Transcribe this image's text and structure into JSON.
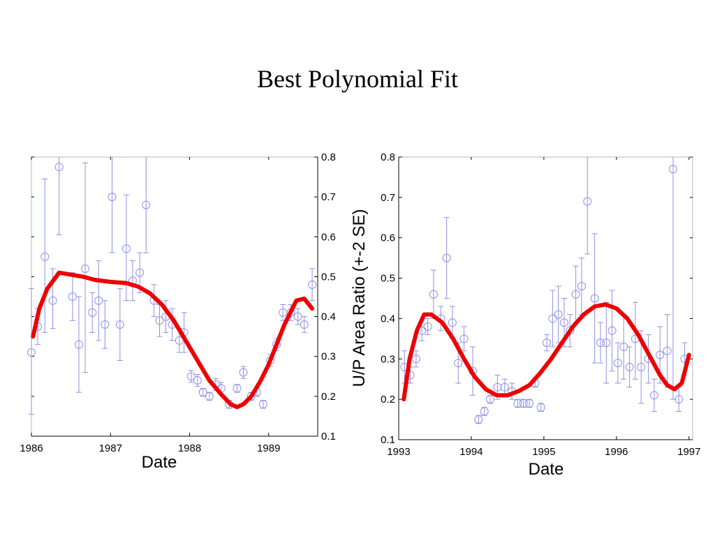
{
  "slide": {
    "title": "Best Polynomial Fit"
  },
  "colors": {
    "fit": "#ee0000",
    "observed": "#8f8fe8",
    "axis": "#000000",
    "frame": "#b4b4b4"
  },
  "chart_data": [
    {
      "type": "scatter",
      "xlabel": "Date",
      "ylabel": "",
      "xlim": [
        1986,
        1989.62
      ],
      "ylim": [
        0.1,
        0.8
      ],
      "y_axis_side": "right",
      "x_ticks": [
        1986,
        1987,
        1988,
        1989
      ],
      "x_tick_labels": [
        "1986",
        "1987",
        "1988",
        "1989"
      ],
      "y_ticks": [
        0.1,
        0.2,
        0.3,
        0.4,
        0.5,
        0.6,
        0.7,
        0.8
      ],
      "y_tick_labels": [
        "0.1",
        "0.2",
        "0.3",
        "0.4",
        "0.5",
        "0.6",
        "0.7",
        "0.8"
      ],
      "series": [
        {
          "style": "markers-with-error-bars",
          "points": [
            [
              1986.0,
              0.31,
              0.155,
              0.47
            ],
            [
              1986.08,
              0.375,
              0.33,
              0.42
            ],
            [
              1986.17,
              0.55,
              0.36,
              0.745
            ],
            [
              1986.27,
              0.44,
              0.37,
              0.52
            ],
            [
              1986.35,
              0.775,
              0.605,
              0.8
            ],
            [
              1986.52,
              0.45,
              0.39,
              0.51
            ],
            [
              1986.6,
              0.33,
              0.21,
              0.45
            ],
            [
              1986.68,
              0.52,
              0.26,
              0.785
            ],
            [
              1986.77,
              0.41,
              0.36,
              0.46
            ],
            [
              1986.85,
              0.44,
              0.34,
              0.54
            ],
            [
              1986.93,
              0.38,
              0.32,
              0.44
            ],
            [
              1987.02,
              0.7,
              0.56,
              0.8
            ],
            [
              1987.12,
              0.38,
              0.29,
              0.47
            ],
            [
              1987.2,
              0.57,
              0.44,
              0.705
            ],
            [
              1987.28,
              0.49,
              0.44,
              0.54
            ],
            [
              1987.37,
              0.51,
              0.46,
              0.56
            ],
            [
              1987.45,
              0.68,
              0.56,
              0.8
            ],
            [
              1987.55,
              0.44,
              0.4,
              0.48
            ],
            [
              1987.62,
              0.39,
              0.35,
              0.43
            ],
            [
              1987.7,
              0.4,
              0.36,
              0.44
            ],
            [
              1987.78,
              0.38,
              0.34,
              0.42
            ],
            [
              1987.87,
              0.34,
              0.31,
              0.37
            ],
            [
              1987.93,
              0.36,
              0.31,
              0.41
            ],
            [
              1988.02,
              0.25,
              0.235,
              0.265
            ],
            [
              1988.1,
              0.24,
              0.225,
              0.255
            ],
            [
              1988.17,
              0.21,
              0.2,
              0.22
            ],
            [
              1988.25,
              0.2,
              0.19,
              0.21
            ],
            [
              1988.33,
              0.23,
              0.215,
              0.245
            ],
            [
              1988.4,
              0.22,
              0.205,
              0.235
            ],
            [
              1988.5,
              0.18,
              0.17,
              0.19
            ],
            [
              1988.6,
              0.22,
              0.21,
              0.23
            ],
            [
              1988.68,
              0.26,
              0.245,
              0.275
            ],
            [
              1988.78,
              0.2,
              0.19,
              0.21
            ],
            [
              1988.85,
              0.21,
              0.2,
              0.22
            ],
            [
              1988.93,
              0.18,
              0.17,
              0.19
            ],
            [
              1989.02,
              0.29,
              0.275,
              0.305
            ],
            [
              1989.1,
              0.33,
              0.315,
              0.345
            ],
            [
              1989.18,
              0.41,
              0.39,
              0.43
            ],
            [
              1989.28,
              0.41,
              0.39,
              0.43
            ],
            [
              1989.37,
              0.4,
              0.38,
              0.42
            ],
            [
              1989.45,
              0.38,
              0.36,
              0.4
            ],
            [
              1989.55,
              0.48,
              0.44,
              0.52
            ]
          ]
        },
        {
          "style": "fit-line",
          "x": [
            1986.02,
            1986.1,
            1986.2,
            1986.35,
            1986.5,
            1986.65,
            1986.8,
            1987.0,
            1987.2,
            1987.35,
            1987.5,
            1987.65,
            1987.8,
            1987.95,
            1988.1,
            1988.25,
            1988.4,
            1988.52,
            1988.6,
            1988.68,
            1988.78,
            1988.9,
            1989.0,
            1989.1,
            1989.2,
            1989.35,
            1989.45,
            1989.55
          ],
          "y": [
            0.35,
            0.42,
            0.47,
            0.51,
            0.505,
            0.5,
            0.492,
            0.487,
            0.484,
            0.475,
            0.458,
            0.43,
            0.39,
            0.34,
            0.29,
            0.24,
            0.205,
            0.18,
            0.173,
            0.18,
            0.2,
            0.24,
            0.28,
            0.33,
            0.38,
            0.44,
            0.445,
            0.42
          ]
        }
      ]
    },
    {
      "type": "scatter",
      "xlabel": "Date",
      "ylabel": "U/P Area Ratio (+-2 SE)",
      "xlim": [
        1993,
        1997.05
      ],
      "ylim": [
        0.1,
        0.8
      ],
      "y_axis_side": "left",
      "x_ticks": [
        1993,
        1994,
        1995,
        1996,
        1997
      ],
      "x_tick_labels": [
        "1993",
        "1994",
        "1995",
        "1996",
        "1997"
      ],
      "y_ticks": [
        0.1,
        0.2,
        0.3,
        0.4,
        0.5,
        0.6,
        0.7,
        0.8
      ],
      "y_tick_labels": [
        "0.1",
        "0.2",
        "0.3",
        "0.4",
        "0.5",
        "0.6",
        "0.7",
        "0.8"
      ],
      "series": [
        {
          "style": "markers-with-error-bars",
          "points": [
            [
              1993.08,
              0.28,
              0.24,
              0.32
            ],
            [
              1993.16,
              0.26,
              0.24,
              0.28
            ],
            [
              1993.24,
              0.3,
              0.28,
              0.32
            ],
            [
              1993.32,
              0.37,
              0.345,
              0.395
            ],
            [
              1993.4,
              0.38,
              0.36,
              0.4
            ],
            [
              1993.48,
              0.46,
              0.4,
              0.52
            ],
            [
              1993.58,
              0.4,
              0.37,
              0.43
            ],
            [
              1993.66,
              0.55,
              0.45,
              0.65
            ],
            [
              1993.74,
              0.39,
              0.35,
              0.43
            ],
            [
              1993.82,
              0.29,
              0.24,
              0.34
            ],
            [
              1993.9,
              0.35,
              0.32,
              0.38
            ],
            [
              1994.02,
              0.27,
              0.21,
              0.33
            ],
            [
              1994.1,
              0.15,
              0.14,
              0.16
            ],
            [
              1994.18,
              0.17,
              0.16,
              0.18
            ],
            [
              1994.26,
              0.2,
              0.19,
              0.21
            ],
            [
              1994.36,
              0.23,
              0.2,
              0.26
            ],
            [
              1994.46,
              0.23,
              0.21,
              0.25
            ],
            [
              1994.56,
              0.22,
              0.2,
              0.24
            ],
            [
              1994.64,
              0.19,
              0.18,
              0.2
            ],
            [
              1994.72,
              0.19,
              0.18,
              0.2
            ],
            [
              1994.8,
              0.19,
              0.18,
              0.2
            ],
            [
              1994.88,
              0.24,
              0.23,
              0.25
            ],
            [
              1994.96,
              0.18,
              0.17,
              0.19
            ],
            [
              1995.04,
              0.34,
              0.32,
              0.36
            ],
            [
              1995.12,
              0.4,
              0.33,
              0.47
            ],
            [
              1995.2,
              0.41,
              0.34,
              0.48
            ],
            [
              1995.28,
              0.39,
              0.33,
              0.45
            ],
            [
              1995.36,
              0.37,
              0.33,
              0.41
            ],
            [
              1995.44,
              0.46,
              0.39,
              0.53
            ],
            [
              1995.52,
              0.48,
              0.41,
              0.55
            ],
            [
              1995.6,
              0.69,
              0.56,
              0.8
            ],
            [
              1995.7,
              0.45,
              0.29,
              0.61
            ],
            [
              1995.78,
              0.34,
              0.29,
              0.39
            ],
            [
              1995.86,
              0.34,
              0.24,
              0.44
            ],
            [
              1995.94,
              0.37,
              0.27,
              0.47
            ],
            [
              1996.02,
              0.29,
              0.24,
              0.34
            ],
            [
              1996.1,
              0.33,
              0.25,
              0.41
            ],
            [
              1996.18,
              0.28,
              0.23,
              0.33
            ],
            [
              1996.26,
              0.35,
              0.25,
              0.44
            ],
            [
              1996.34,
              0.28,
              0.19,
              0.37
            ],
            [
              1996.44,
              0.3,
              0.24,
              0.36
            ],
            [
              1996.52,
              0.21,
              0.17,
              0.25
            ],
            [
              1996.6,
              0.31,
              0.24,
              0.38
            ],
            [
              1996.7,
              0.32,
              0.23,
              0.41
            ],
            [
              1996.78,
              0.77,
              0.2,
              0.8
            ],
            [
              1996.86,
              0.2,
              0.17,
              0.23
            ],
            [
              1996.94,
              0.3,
              0.26,
              0.34
            ]
          ]
        },
        {
          "style": "fit-line",
          "x": [
            1993.07,
            1993.15,
            1993.25,
            1993.35,
            1993.45,
            1993.6,
            1993.75,
            1993.9,
            1994.05,
            1994.2,
            1994.35,
            1994.5,
            1994.65,
            1994.8,
            1994.95,
            1995.1,
            1995.25,
            1995.4,
            1995.55,
            1995.7,
            1995.85,
            1996.0,
            1996.15,
            1996.3,
            1996.45,
            1996.6,
            1996.7,
            1996.8,
            1996.9,
            1997.0
          ],
          "y": [
            0.2,
            0.3,
            0.37,
            0.41,
            0.41,
            0.39,
            0.35,
            0.3,
            0.255,
            0.225,
            0.21,
            0.21,
            0.22,
            0.235,
            0.265,
            0.3,
            0.34,
            0.38,
            0.41,
            0.43,
            0.435,
            0.425,
            0.4,
            0.36,
            0.31,
            0.26,
            0.235,
            0.225,
            0.24,
            0.31
          ]
        }
      ]
    }
  ]
}
